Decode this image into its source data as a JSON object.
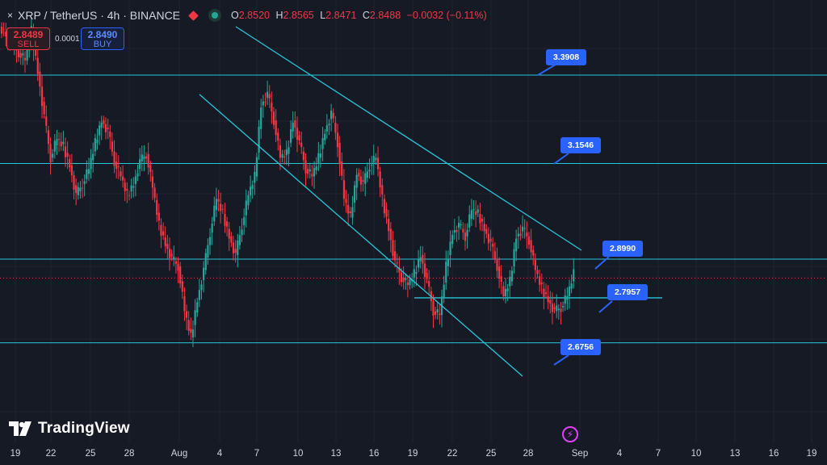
{
  "header": {
    "close_glyph": "×",
    "symbol_title": "XRP / TetherUS · 4h · BINANCE",
    "open_key": "O",
    "open_value": "2.8520",
    "high_key": "H",
    "high_value": "2.8565",
    "low_key": "L",
    "low_value": "2.8471",
    "close_key": "C",
    "close_value": "2.8488",
    "change_value": "−0.0032 (−0.11%)"
  },
  "trade": {
    "sell_price": "2.8489",
    "sell_label": "SELL",
    "spread": "0.0001",
    "buy_price": "2.8490",
    "buy_label": "BUY"
  },
  "price_labels": [
    "3.3908",
    "3.1546",
    "2.8990",
    "2.7957",
    "2.6756"
  ],
  "brand": {
    "name": "TradingView"
  },
  "icons": {
    "close": "close-icon",
    "flag": "flag-icon",
    "status": "live-status-icon",
    "logo": "tradingview-logo-icon",
    "flash": "lightning-icon"
  },
  "colors": {
    "background": "#161a25",
    "up": "#26a69a",
    "down": "#f23645",
    "drawing": "#26c6da",
    "label": "#2962ff"
  },
  "x_axis": [
    "19",
    "22",
    "25",
    "28",
    "Aug",
    "4",
    "7",
    "10",
    "13",
    "16",
    "19",
    "22",
    "25",
    "28",
    "Sep",
    "4",
    "7",
    "10",
    "13",
    "16",
    "19"
  ],
  "chart_data": {
    "type": "candlestick",
    "title": "XRP / TetherUS · 4h · BINANCE",
    "x_ticks": [
      "19",
      "22",
      "25",
      "28",
      "Aug",
      "4",
      "7",
      "10",
      "13",
      "16",
      "19",
      "22",
      "25",
      "28",
      "Sep",
      "4",
      "7",
      "10",
      "13",
      "16",
      "19"
    ],
    "horizontal_levels": [
      3.3908,
      3.1546,
      2.899,
      2.7957,
      2.6756
    ],
    "last_price": 2.8488,
    "series_close": [
      3.5,
      3.47,
      3.45,
      3.43,
      3.51,
      3.4,
      3.28,
      3.17,
      3.22,
      3.2,
      3.15,
      3.07,
      3.1,
      3.14,
      3.21,
      3.27,
      3.24,
      3.16,
      3.12,
      3.07,
      3.1,
      3.16,
      3.18,
      3.09,
      2.99,
      2.94,
      2.9,
      2.88,
      2.76,
      2.69,
      2.79,
      2.87,
      2.97,
      3.06,
      3.02,
      2.96,
      2.91,
      2.99,
      3.07,
      3.12,
      3.31,
      3.34,
      3.27,
      3.17,
      3.18,
      3.27,
      3.21,
      3.14,
      3.12,
      3.17,
      3.24,
      3.29,
      3.21,
      3.06,
      3.01,
      3.13,
      3.1,
      3.15,
      3.17,
      3.06,
      2.98,
      2.89,
      2.85,
      2.83,
      2.86,
      2.91,
      2.84,
      2.76,
      2.75,
      2.88,
      2.97,
      2.99,
      2.96,
      3.03,
      3.02,
      2.98,
      2.94,
      2.88,
      2.8,
      2.84,
      2.96,
      2.98,
      2.95,
      2.87,
      2.82,
      2.79,
      2.76,
      2.77,
      2.8,
      2.86
    ],
    "ylim": [
      2.6,
      3.58
    ]
  }
}
